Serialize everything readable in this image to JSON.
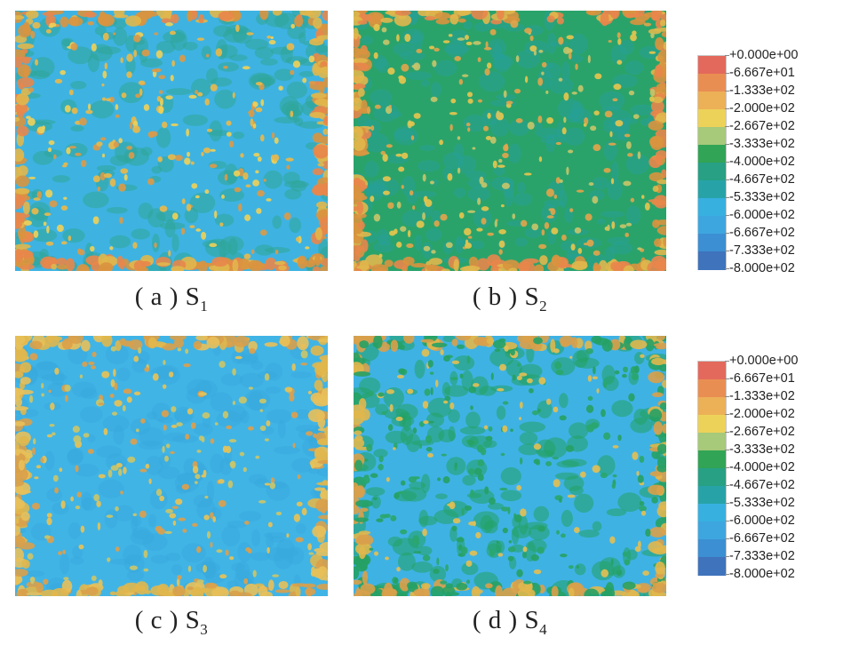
{
  "figures": [
    {
      "id": "a",
      "prefix": "( a ) ",
      "symbol": "S",
      "subscript": "1",
      "theme": {
        "base": "#3eb3e2",
        "mid": "#2fa697",
        "dots": [
          "#e7b94c",
          "#d99a4a",
          "#ecd05a"
        ],
        "border": [
          "#e0b74c",
          "#d9933f",
          "#e8864b"
        ]
      }
    },
    {
      "id": "b",
      "prefix": "( b ) ",
      "symbol": "S",
      "subscript": "2",
      "theme": {
        "base": "#2aa36b",
        "mid": "#27a097",
        "dots": [
          "#e5c44e",
          "#c4c46a",
          "#e0a44c"
        ],
        "border": [
          "#e0b74c",
          "#d9933f",
          "#e8864b"
        ]
      }
    },
    {
      "id": "c",
      "prefix": "( c ) ",
      "symbol": "S",
      "subscript": "3",
      "theme": {
        "base": "#41b4e6",
        "mid": "#38aadc",
        "dots": [
          "#e6c257",
          "#c9c56a",
          "#dba04e"
        ],
        "border": [
          "#e0b74c",
          "#d9a04a",
          "#e8c05a"
        ]
      }
    },
    {
      "id": "d",
      "prefix": "( d ) ",
      "symbol": "S",
      "subscript": "4",
      "theme": {
        "base": "#3fb2e4",
        "mid": "#22a262",
        "dots": [
          "#26a165",
          "#e1bf55",
          "#2aa66d"
        ],
        "border": [
          "#e0b74c",
          "#26a165",
          "#d9a04a"
        ]
      }
    }
  ],
  "legend": {
    "labels": [
      "+0.000e+00",
      "-6.667e+01",
      "-1.333e+02",
      "-2.000e+02",
      "-2.667e+02",
      "-3.333e+02",
      "-4.000e+02",
      "-4.667e+02",
      "-5.333e+02",
      "-6.000e+02",
      "-6.667e+02",
      "-7.333e+02",
      "-8.000e+02"
    ],
    "colors": [
      "#e3695c",
      "#e98e53",
      "#ecb057",
      "#ecd259",
      "#a6c97a",
      "#31a456",
      "#27a083",
      "#27a3a8",
      "#37b0e0",
      "#3ea6df",
      "#3b8fd2",
      "#3f73bc"
    ]
  }
}
